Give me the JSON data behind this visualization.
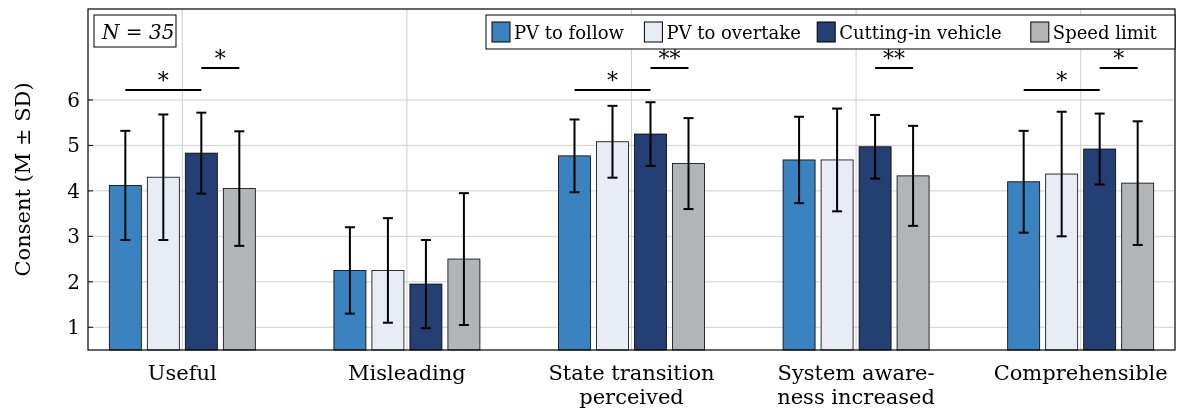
{
  "chart_data": {
    "type": "bar",
    "ylabel": "Consent (M ± SD)",
    "categories": [
      "Useful",
      "Misleading",
      "State transition\nperceived",
      "System aware-\nness increased",
      "Comprehensible"
    ],
    "series": [
      {
        "name": "PV to follow",
        "color": "#3a82c0",
        "values": [
          4.12,
          2.25,
          4.77,
          4.68,
          4.2
        ],
        "errors": [
          1.2,
          0.95,
          0.8,
          0.95,
          1.12
        ]
      },
      {
        "name": "PV to overtake",
        "color": "#e8edf5",
        "values": [
          4.3,
          2.25,
          5.08,
          4.68,
          4.37
        ],
        "errors": [
          1.38,
          1.15,
          0.79,
          1.13,
          1.37
        ]
      },
      {
        "name": "Cutting-in vehicle",
        "color": "#233f73",
        "values": [
          4.83,
          1.95,
          5.25,
          4.97,
          4.92
        ],
        "errors": [
          0.89,
          0.97,
          0.7,
          0.7,
          0.78
        ]
      },
      {
        "name": "Speed limit",
        "color": "#b2b5b8",
        "values": [
          4.05,
          2.5,
          4.6,
          4.33,
          4.17
        ],
        "errors": [
          1.26,
          1.45,
          1.0,
          1.1,
          1.36
        ]
      }
    ],
    "ylim": [
      0.5,
      8
    ],
    "yticks": [
      1,
      2,
      3,
      4,
      5,
      6
    ],
    "grid": true,
    "legend": "top right",
    "annotations": [
      "N = 35",
      "*",
      "*",
      "*",
      "**",
      "**",
      "*",
      "*"
    ]
  }
}
